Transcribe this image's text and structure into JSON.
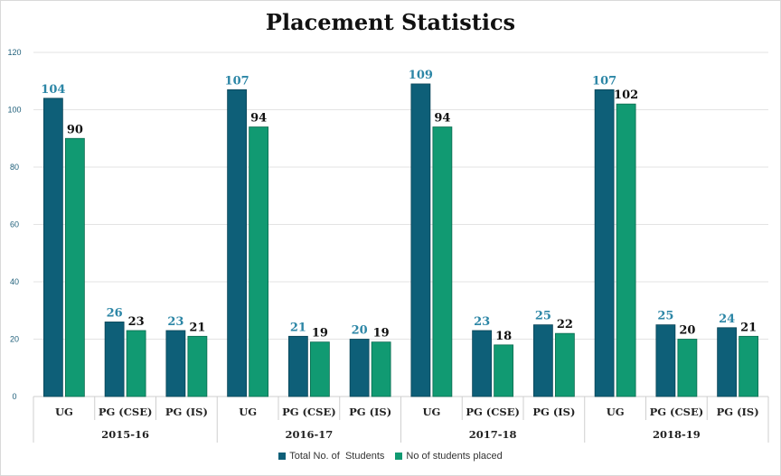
{
  "chart_data": {
    "type": "bar",
    "title": "Placement Statistics",
    "xlabel": "",
    "ylabel": "",
    "ylim": [
      0,
      120
    ],
    "yticks": [
      0,
      20,
      40,
      60,
      80,
      100,
      120
    ],
    "grid": true,
    "legend_position": "bottom",
    "groups": [
      {
        "label": "2015-16",
        "categories": [
          "UG",
          "PG (CSE)",
          "PG (IS)"
        ]
      },
      {
        "label": "2016-17",
        "categories": [
          "UG",
          "PG (CSE)",
          "PG (IS)"
        ]
      },
      {
        "label": "2017-18",
        "categories": [
          "UG",
          "PG (CSE)",
          "PG (IS)"
        ]
      },
      {
        "label": "2018-19",
        "categories": [
          "UG",
          "PG (CSE)",
          "PG (IS)"
        ]
      }
    ],
    "series": [
      {
        "name": "Total No. of  Students",
        "color": "#0e5f78",
        "label_color": "#2c86a6",
        "values": [
          104,
          26,
          23,
          107,
          21,
          20,
          109,
          23,
          25,
          107,
          25,
          24
        ]
      },
      {
        "name": "No of students placed",
        "color": "#119a72",
        "label_color": "#111111",
        "values": [
          90,
          23,
          21,
          94,
          19,
          19,
          94,
          18,
          22,
          102,
          20,
          21
        ]
      }
    ]
  }
}
